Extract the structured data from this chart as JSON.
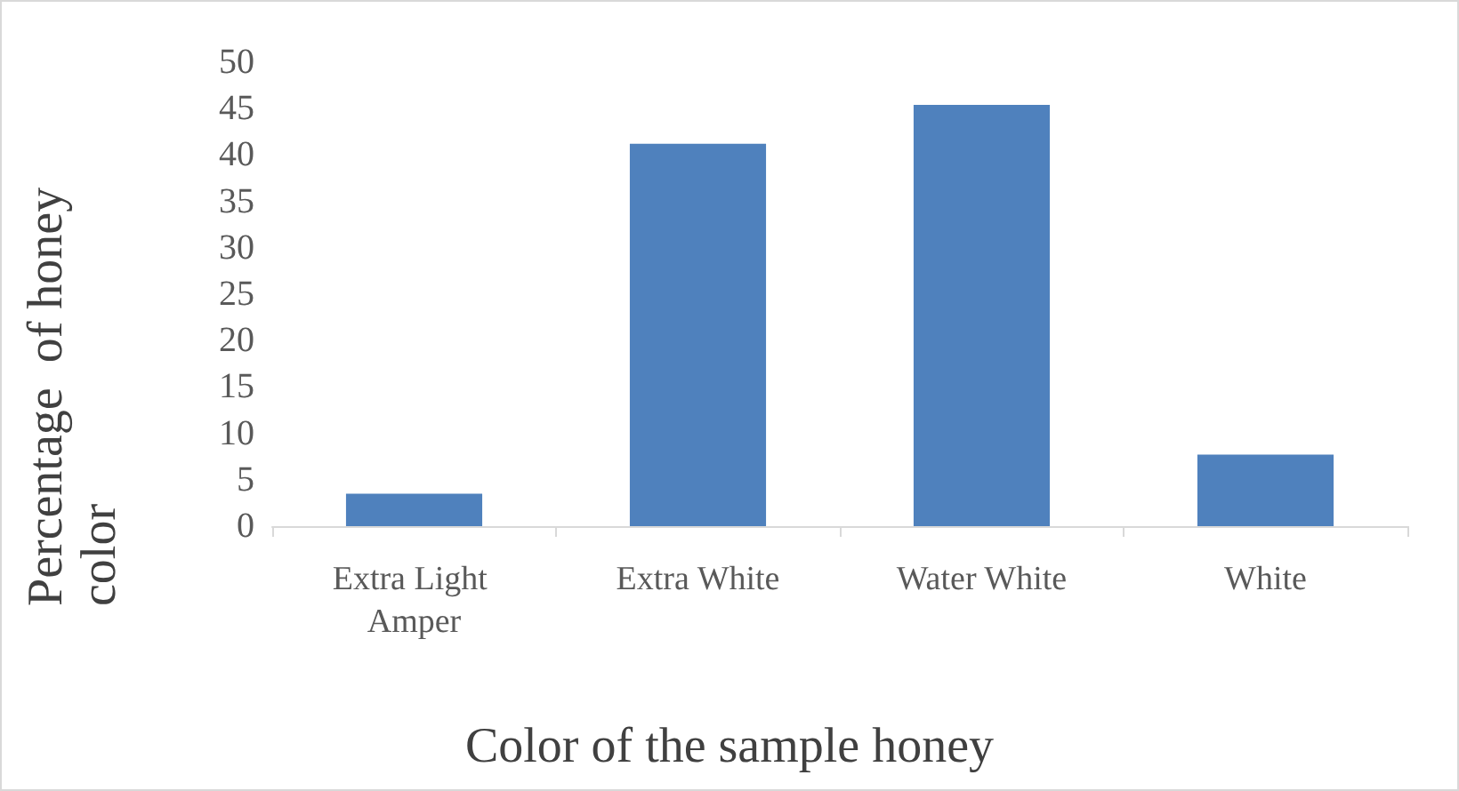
{
  "chart_data": {
    "type": "bar",
    "xlabel": "Color of the sample honey",
    "ylabel": "Percentage  of honey color",
    "categories": [
      "Extra Light Amper",
      "Extra White",
      "Water White",
      "White"
    ],
    "values": [
      3.5,
      41.2,
      45.4,
      7.7
    ],
    "color": "#4f81bd",
    "ylim": [
      0,
      50
    ],
    "yticks": [
      0,
      5,
      10,
      15,
      20,
      25,
      30,
      35,
      40,
      45,
      50
    ],
    "grid": false
  }
}
